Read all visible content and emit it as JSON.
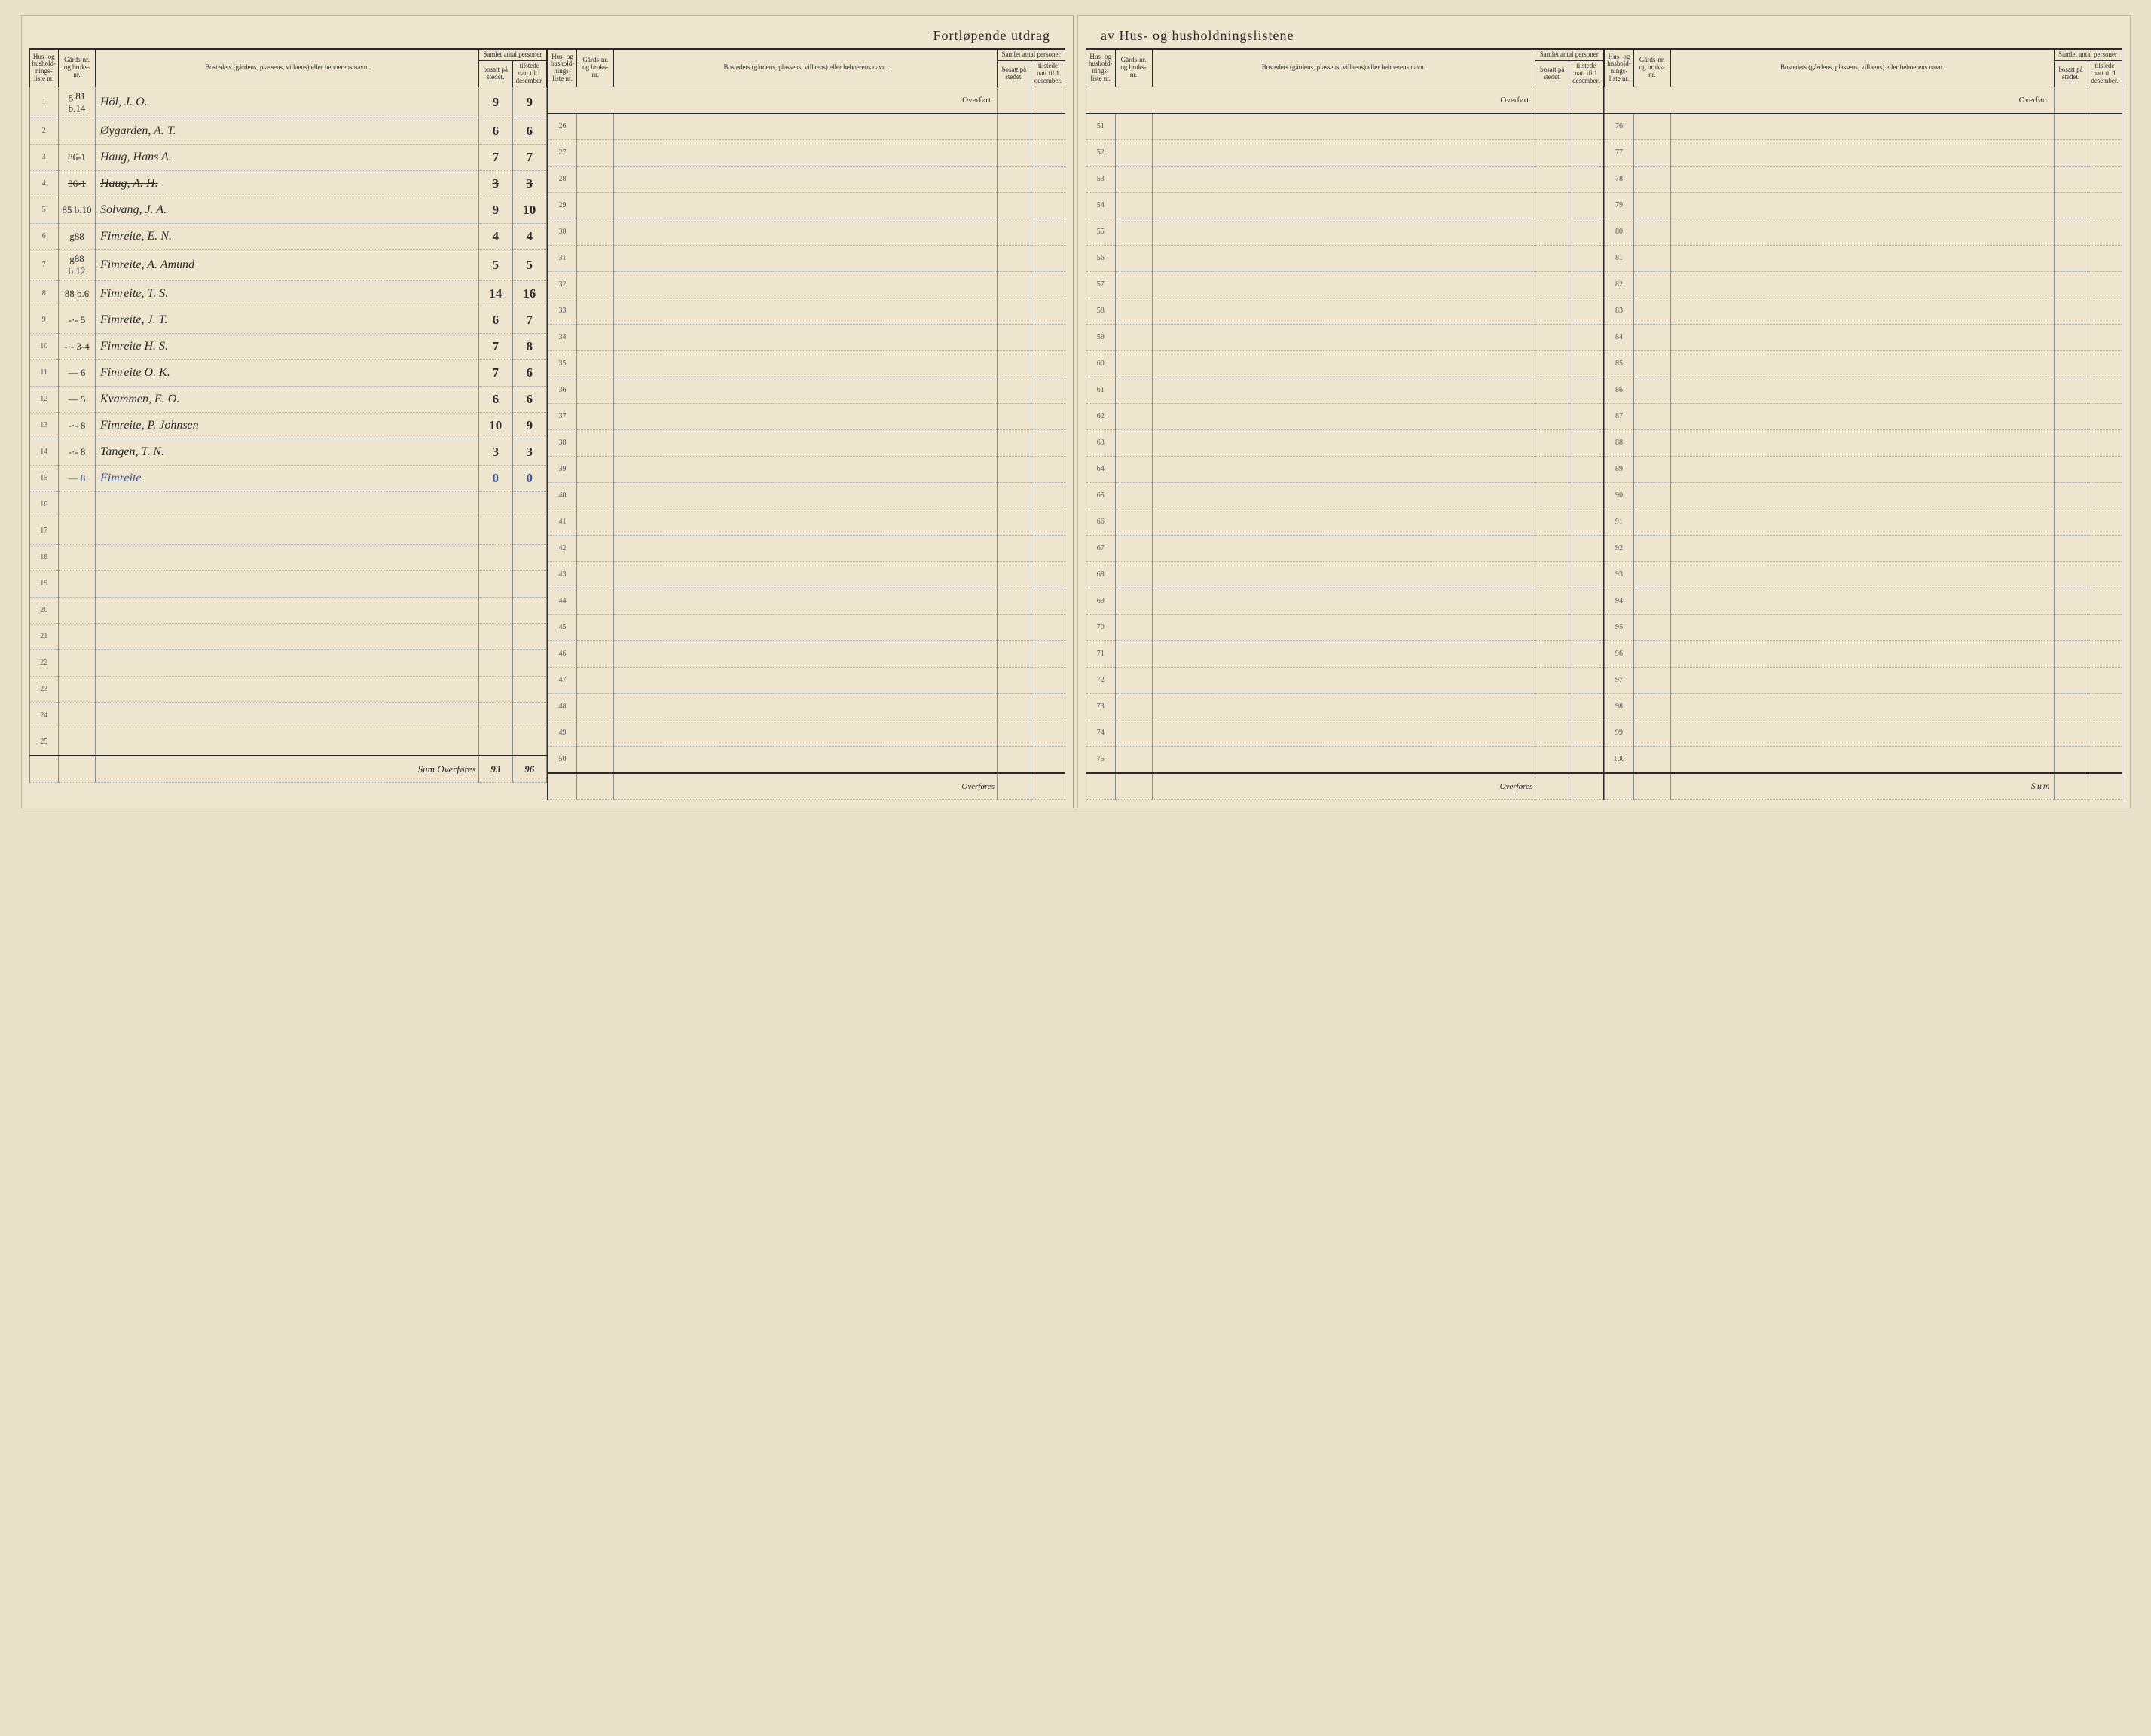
{
  "title_left": "Fortløpende utdrag",
  "title_right": "av Hus- og husholdningslistene",
  "headers": {
    "husliste": "Hus- og hushold-nings-liste nr.",
    "gard": "Gårds-nr. og bruks-nr.",
    "bosted": "Bostedets (gårdens, plassens, villaens) eller beboerens navn.",
    "samlet": "Samlet antal personer",
    "bosatt": "bosatt på stedet.",
    "tilstede": "tilstede natt til 1 desember."
  },
  "overfort": "Overført",
  "overfores": "Overføres",
  "sum_label": "Sum",
  "sum_word": "Sum Overføres",
  "rows_col1": [
    {
      "n": "1",
      "gard": "g.81 b.14",
      "name": "Höl, J. O.",
      "b": "9",
      "t": "9",
      "struck": false
    },
    {
      "n": "2",
      "gard": "",
      "name": "Øygarden, A. T.",
      "b": "6",
      "t": "6",
      "struck": false
    },
    {
      "n": "3",
      "gard": "86-1",
      "name": "Haug, Hans A.",
      "b": "7",
      "t": "7",
      "struck": false
    },
    {
      "n": "4",
      "gard": "86-1",
      "name": "Haug, A. H.",
      "b": "3",
      "t": "3",
      "struck": true
    },
    {
      "n": "5",
      "gard": "85 b.10",
      "name": "Solvang, J. A.",
      "b": "9",
      "t": "10",
      "struck": false
    },
    {
      "n": "6",
      "gard": "g88",
      "name": "Fimreite, E. N.",
      "b": "4",
      "t": "4",
      "struck": false
    },
    {
      "n": "7",
      "gard": "g88 b.12",
      "name": "Fimreite, A. Amund",
      "b": "5",
      "t": "5",
      "struck": false
    },
    {
      "n": "8",
      "gard": "88 b.6",
      "name": "Fimreite, T. S.",
      "b": "14",
      "t": "16",
      "struck": false
    },
    {
      "n": "9",
      "gard": "-·- 5",
      "name": "Fimreite, J. T.",
      "b": "6",
      "t": "7",
      "struck": false
    },
    {
      "n": "10",
      "gard": "-·- 3-4",
      "name": "Fimreite H. S.",
      "b": "7",
      "t": "8",
      "struck": false
    },
    {
      "n": "11",
      "gard": "— 6",
      "name": "Fimreite O. K.",
      "b": "7",
      "t": "6",
      "struck": false
    },
    {
      "n": "12",
      "gard": "— 5",
      "name": "Kvammen, E. O.",
      "b": "6",
      "t": "6",
      "struck": false
    },
    {
      "n": "13",
      "gard": "-·- 8",
      "name": "Fimreite, P. Johnsen",
      "b": "10",
      "t": "9",
      "struck": false
    },
    {
      "n": "14",
      "gard": "-·- 8",
      "name": "Tangen, T. N.",
      "b": "3",
      "t": "3",
      "struck": false
    },
    {
      "n": "15",
      "gard": "— 8",
      "name": "Fimreite",
      "b": "0",
      "t": "0",
      "struck": false,
      "blue": true
    },
    {
      "n": "16",
      "gard": "",
      "name": "",
      "b": "",
      "t": ""
    },
    {
      "n": "17",
      "gard": "",
      "name": "",
      "b": "",
      "t": ""
    },
    {
      "n": "18",
      "gard": "",
      "name": "",
      "b": "",
      "t": ""
    },
    {
      "n": "19",
      "gard": "",
      "name": "",
      "b": "",
      "t": ""
    },
    {
      "n": "20",
      "gard": "",
      "name": "",
      "b": "",
      "t": ""
    },
    {
      "n": "21",
      "gard": "",
      "name": "",
      "b": "",
      "t": ""
    },
    {
      "n": "22",
      "gard": "",
      "name": "",
      "b": "",
      "t": ""
    },
    {
      "n": "23",
      "gard": "",
      "name": "",
      "b": "",
      "t": ""
    },
    {
      "n": "24",
      "gard": "",
      "name": "",
      "b": "",
      "t": ""
    },
    {
      "n": "25",
      "gard": "",
      "name": "",
      "b": "",
      "t": ""
    }
  ],
  "sum_b": "93",
  "sum_t": "96",
  "ranges": {
    "col2": [
      26,
      50
    ],
    "col3": [
      51,
      75
    ],
    "col4": [
      76,
      100
    ]
  },
  "colors": {
    "paper": "#ede5cd",
    "ink": "#2a2a2a",
    "rule": "#888",
    "blue": "#3a5a9a"
  }
}
